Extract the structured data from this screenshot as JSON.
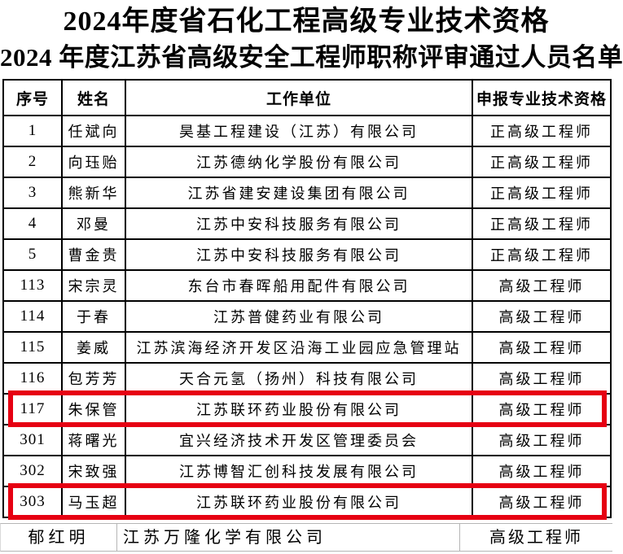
{
  "page": {
    "title_line1": "2024年度省石化工程高级专业技术资格",
    "title_line2": "2024 年度江苏省高级安全工程师职称评审通过人员名单"
  },
  "colors": {
    "highlight_red": "#e60012",
    "table_border": "#000000",
    "partial_border": "#b5b5b5"
  },
  "table": {
    "headers": [
      "序号",
      "姓名",
      "工作单位",
      "申报专业技术资格"
    ],
    "rows": [
      {
        "no": "1",
        "name": "任斌向",
        "unit": "昊基工程建设（江苏）有限公司",
        "qualification": "正高级工程师",
        "highlighted": false
      },
      {
        "no": "2",
        "name": "向珏贻",
        "unit": "江苏德纳化学股份有限公司",
        "qualification": "正高级工程师",
        "highlighted": false
      },
      {
        "no": "3",
        "name": "熊新华",
        "unit": "江苏省建安建设集团有限公司",
        "qualification": "正高级工程师",
        "highlighted": false
      },
      {
        "no": "4",
        "name": "邓曼",
        "unit": "江苏中安科技服务有限公司",
        "qualification": "正高级工程师",
        "highlighted": false
      },
      {
        "no": "5",
        "name": "曹金贵",
        "unit": "江苏中安科技服务有限公司",
        "qualification": "正高级工程师",
        "highlighted": false
      },
      {
        "no": "113",
        "name": "宋宗灵",
        "unit": "东台市春晖船用配件有限公司",
        "qualification": "高级工程师",
        "highlighted": false
      },
      {
        "no": "114",
        "name": "于春",
        "unit": "江苏普健药业有限公司",
        "qualification": "高级工程师",
        "highlighted": false
      },
      {
        "no": "115",
        "name": "姜威",
        "unit": "江苏滨海经济开发区沿海工业园应急管理站",
        "qualification": "高级工程师",
        "highlighted": false
      },
      {
        "no": "116",
        "name": "包芳芳",
        "unit": "天合元氢（扬州）科技有限公司",
        "qualification": "高级工程师",
        "highlighted": false
      },
      {
        "no": "117",
        "name": "朱保管",
        "unit": "江苏联环药业股份有限公司",
        "qualification": "高级工程师",
        "highlighted": true
      },
      {
        "no": "301",
        "name": "蒋曙光",
        "unit": "宜兴经济技术开发区管理委员会",
        "qualification": "高级工程师",
        "highlighted": false
      },
      {
        "no": "302",
        "name": "宋致强",
        "unit": "江苏博智汇创科技发展有限公司",
        "qualification": "高级工程师",
        "highlighted": false
      },
      {
        "no": "303",
        "name": "马玉超",
        "unit": "江苏联环药业股份有限公司",
        "qualification": "高级工程师",
        "highlighted": true
      }
    ]
  },
  "partial_row": {
    "name": "郁红明",
    "unit": "江苏万隆化学有限公司",
    "qualification": "高级工程师"
  }
}
